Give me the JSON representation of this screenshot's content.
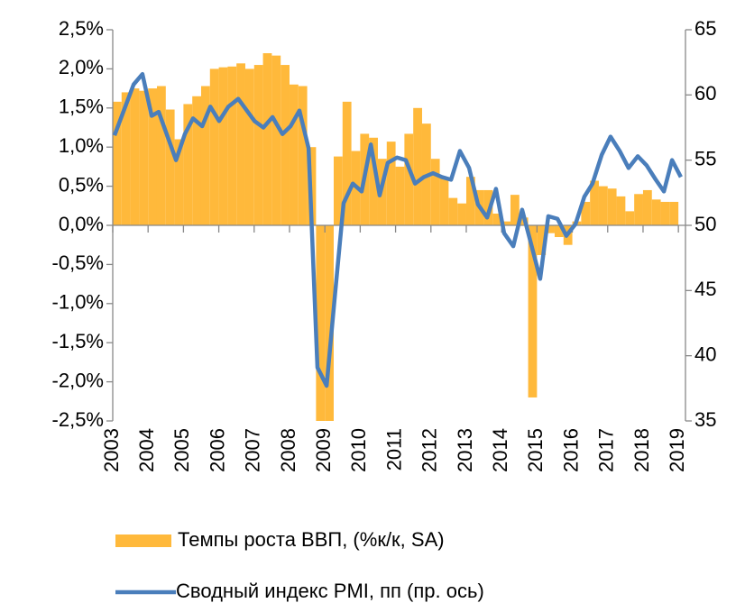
{
  "chart_data": {
    "type": "bar+line",
    "xlim": [
      2003,
      2019.2
    ],
    "xticks": [
      2003,
      2004,
      2005,
      2006,
      2007,
      2008,
      2009,
      2010,
      2011,
      2012,
      2013,
      2014,
      2015,
      2016,
      2017,
      2018,
      2019
    ],
    "ylim": [
      -2.5,
      2.5
    ],
    "yticks": [
      {
        "value": -2.5,
        "label": "-2,5%"
      },
      {
        "value": -2.0,
        "label": "-2,0%"
      },
      {
        "value": -1.5,
        "label": "-1,5%"
      },
      {
        "value": -1.0,
        "label": "-1,0%"
      },
      {
        "value": -0.5,
        "label": "-0,5%"
      },
      {
        "value": 0,
        "label": "0,0%"
      },
      {
        "value": 0.5,
        "label": "0,5%"
      },
      {
        "value": 1.0,
        "label": "1,0%"
      },
      {
        "value": 1.5,
        "label": "1,5%"
      },
      {
        "value": 2.0,
        "label": "2,0%"
      },
      {
        "value": 2.5,
        "label": "2,5%"
      }
    ],
    "y2lim": [
      35,
      65
    ],
    "y2ticks": [
      35,
      40,
      45,
      50,
      55,
      60,
      65
    ],
    "legend": "bottom",
    "series": [
      {
        "name": "Темпы роста ВВП, (%к/к, SA)",
        "type": "bar",
        "color": "#FFB93B",
        "x": [
          2003.125,
          2003.375,
          2003.625,
          2003.875,
          2004.125,
          2004.375,
          2004.625,
          2004.875,
          2005.125,
          2005.375,
          2005.625,
          2005.875,
          2006.125,
          2006.375,
          2006.625,
          2006.875,
          2007.125,
          2007.375,
          2007.625,
          2007.875,
          2008.125,
          2008.375,
          2008.625,
          2008.875,
          2009.125,
          2009.375,
          2009.625,
          2009.875,
          2010.125,
          2010.375,
          2010.625,
          2010.875,
          2011.125,
          2011.375,
          2011.625,
          2011.875,
          2012.125,
          2012.375,
          2012.625,
          2012.875,
          2013.125,
          2013.375,
          2013.625,
          2013.875,
          2014.125,
          2014.375,
          2014.625,
          2014.875,
          2015.125,
          2015.375,
          2015.625,
          2015.875,
          2016.125,
          2016.375,
          2016.625,
          2016.875,
          2017.125,
          2017.375,
          2017.625,
          2017.875,
          2018.125,
          2018.375,
          2018.625,
          2018.875
        ],
        "values": [
          1.58,
          1.7,
          1.75,
          1.72,
          1.75,
          1.78,
          1.48,
          1.1,
          1.55,
          1.65,
          1.78,
          2.0,
          2.02,
          2.03,
          2.07,
          2.0,
          2.05,
          2.2,
          2.17,
          2.05,
          1.8,
          1.78,
          1.0,
          -2.5,
          -2.5,
          0.88,
          1.58,
          0.95,
          1.17,
          1.12,
          0.85,
          1.07,
          0.75,
          1.17,
          1.5,
          1.3,
          0.85,
          0.6,
          0.35,
          0.28,
          0.62,
          0.45,
          0.45,
          0.15,
          0.05,
          0.39,
          0.1,
          -2.2,
          -0.38,
          -0.1,
          -0.15,
          -0.25,
          0.05,
          0.3,
          0.57,
          0.5,
          0.47,
          0.37,
          0.18,
          0.4,
          0.45,
          0.33,
          0.3,
          0.3
        ]
      },
      {
        "name": "Сводный индекс  PMI, пп (пр. ось)",
        "type": "line",
        "axis": "y2",
        "color": "#4A7EBB",
        "x": [
          2003.05,
          2003.59,
          2003.84,
          2004.1,
          2004.3,
          2004.79,
          2005.04,
          2005.27,
          2005.53,
          2005.76,
          2006.01,
          2006.27,
          2006.55,
          2007.01,
          2007.26,
          2007.52,
          2007.8,
          2008.03,
          2008.28,
          2008.54,
          2008.79,
          2009.05,
          2009.28,
          2009.53,
          2009.79,
          2010.04,
          2010.3,
          2010.55,
          2010.78,
          2011.04,
          2011.29,
          2011.55,
          2011.8,
          2012.06,
          2012.31,
          2012.57,
          2012.82,
          2013.08,
          2013.33,
          2013.59,
          2013.84,
          2014.07,
          2014.33,
          2014.58,
          2014.84,
          2015.09,
          2015.32,
          2015.58,
          2015.83,
          2016.09,
          2016.34,
          2016.57,
          2016.83,
          2017.08,
          2017.34,
          2017.59,
          2017.85,
          2018.1,
          2018.36,
          2018.59,
          2018.82,
          2019.07
        ],
        "values": [
          56.9,
          60.8,
          61.6,
          58.4,
          58.7,
          55.0,
          57.0,
          58.2,
          57.6,
          59.1,
          58.0,
          59.1,
          59.7,
          58.0,
          57.5,
          58.3,
          57.0,
          57.6,
          58.8,
          55.9,
          39.1,
          37.7,
          44.5,
          51.7,
          53.2,
          52.6,
          56.2,
          52.3,
          54.8,
          55.2,
          55.0,
          53.2,
          53.7,
          54.0,
          53.7,
          53.5,
          55.7,
          54.4,
          51.6,
          50.6,
          52.8,
          49.4,
          48.4,
          51.2,
          48.5,
          45.9,
          50.7,
          50.5,
          49.2,
          50.1,
          52.2,
          53.2,
          55.4,
          56.8,
          55.7,
          54.4,
          55.3,
          54.6,
          53.5,
          52.6,
          55.0,
          53.7
        ]
      }
    ]
  }
}
